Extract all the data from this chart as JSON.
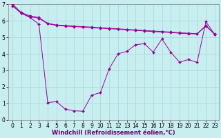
{
  "background_color": "#c8eef0",
  "grid_color": "#a8dce0",
  "line_color": "#990099",
  "marker": "D",
  "marker_size": 2,
  "xlabel": "Windchill (Refroidissement éolien,°C)",
  "xlabel_fontsize": 6,
  "tick_fontsize": 5.5,
  "xlim": [
    -0.5,
    23.5
  ],
  "ylim": [
    0,
    7
  ],
  "yticks": [
    0,
    1,
    2,
    3,
    4,
    5,
    6,
    7
  ],
  "xticks": [
    0,
    1,
    2,
    3,
    4,
    5,
    6,
    7,
    8,
    9,
    10,
    11,
    12,
    13,
    14,
    15,
    16,
    17,
    18,
    19,
    20,
    21,
    22,
    23
  ],
  "line1_x": [
    0,
    1,
    2,
    3,
    4,
    5,
    6,
    7,
    8,
    9,
    10,
    11,
    12,
    13,
    14,
    15,
    16,
    17,
    18,
    19,
    20,
    21,
    22,
    23
  ],
  "line1_y": [
    7.0,
    6.5,
    6.3,
    6.2,
    5.85,
    5.75,
    5.72,
    5.68,
    5.65,
    5.62,
    5.58,
    5.55,
    5.52,
    5.48,
    5.45,
    5.42,
    5.38,
    5.35,
    5.32,
    5.28,
    5.25,
    5.22,
    5.72,
    5.2
  ],
  "line2_x": [
    0,
    1,
    2,
    3,
    4,
    5,
    6,
    7,
    8,
    9,
    10,
    11,
    12,
    13,
    14,
    15,
    16,
    17,
    18,
    19,
    20,
    21,
    22,
    23
  ],
  "line2_y": [
    6.9,
    6.45,
    6.25,
    6.15,
    5.82,
    5.72,
    5.68,
    5.65,
    5.62,
    5.58,
    5.55,
    5.52,
    5.49,
    5.45,
    5.42,
    5.38,
    5.35,
    5.32,
    5.29,
    5.25,
    5.22,
    5.2,
    5.68,
    5.18
  ],
  "line3_x": [
    0,
    1,
    2,
    3,
    4,
    5,
    6,
    7,
    8,
    9,
    10,
    11,
    12,
    13,
    14,
    15,
    16,
    17,
    18,
    19,
    20,
    21,
    22,
    23
  ],
  "line3_y": [
    7.0,
    6.45,
    6.2,
    5.8,
    1.05,
    1.1,
    0.65,
    0.55,
    0.52,
    1.5,
    1.65,
    3.1,
    4.0,
    4.15,
    4.55,
    4.62,
    4.1,
    4.9,
    4.1,
    3.5,
    3.65,
    3.48,
    5.95,
    5.18
  ]
}
